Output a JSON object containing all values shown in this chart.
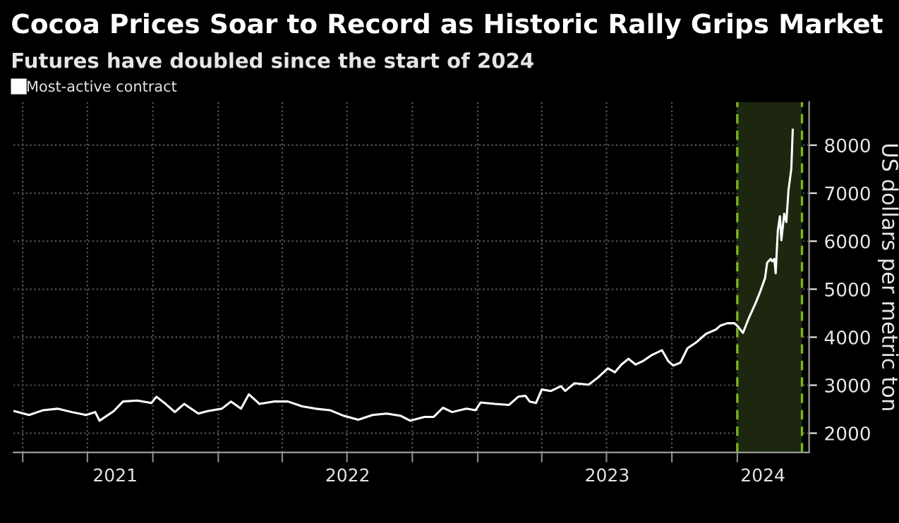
{
  "chart_data": {
    "type": "line",
    "title": "Cocoa Prices Soar to Record as Historic Rally Grips Market",
    "subtitle": "Futures have doubled since the start of 2024",
    "ylabel": "US dollars per metric ton",
    "series": [
      {
        "name": "Most-active contract",
        "color": "#ffffff",
        "x": [
          "2021-03-20",
          "2021-04-10",
          "2021-04-30",
          "2021-05-20",
          "2021-06-09",
          "2021-06-29",
          "2021-07-12",
          "2021-07-18",
          "2021-08-07",
          "2021-08-20",
          "2021-09-09",
          "2021-09-29",
          "2021-10-06",
          "2021-10-19",
          "2021-11-01",
          "2021-11-14",
          "2021-12-04",
          "2021-12-17",
          "2022-01-06",
          "2022-01-19",
          "2022-02-02",
          "2022-02-13",
          "2022-02-28",
          "2022-03-20",
          "2022-04-09",
          "2022-04-29",
          "2022-05-18",
          "2022-06-07",
          "2022-06-27",
          "2022-07-17",
          "2022-08-06",
          "2022-08-26",
          "2022-09-15",
          "2022-09-28",
          "2022-10-18",
          "2022-10-31",
          "2022-11-13",
          "2022-11-26",
          "2022-12-16",
          "2022-12-29",
          "2023-01-05",
          "2023-01-25",
          "2023-02-14",
          "2023-02-27",
          "2023-03-09",
          "2023-03-15",
          "2023-03-24",
          "2023-04-01",
          "2023-04-14",
          "2023-04-28",
          "2023-05-04",
          "2023-05-17",
          "2023-06-06",
          "2023-06-19",
          "2023-07-03",
          "2023-07-13",
          "2023-07-22",
          "2023-08-01",
          "2023-08-11",
          "2023-08-21",
          "2023-09-03",
          "2023-09-17",
          "2023-09-26",
          "2023-10-03",
          "2023-10-13",
          "2023-10-23",
          "2023-11-05",
          "2023-11-18",
          "2023-12-02",
          "2023-12-08",
          "2023-12-18",
          "2023-12-28",
          "2024-01-02",
          "2024-01-09",
          "2024-01-17",
          "2024-01-27",
          "2024-02-02",
          "2024-02-09",
          "2024-02-12",
          "2024-02-17",
          "2024-02-19",
          "2024-02-22",
          "2024-02-24",
          "2024-02-27",
          "2024-03-01",
          "2024-03-03",
          "2024-03-07",
          "2024-03-10",
          "2024-03-13",
          "2024-03-17",
          "2024-03-19"
        ],
        "values": [
          2460,
          2380,
          2480,
          2510,
          2440,
          2380,
          2440,
          2260,
          2460,
          2660,
          2680,
          2630,
          2760,
          2610,
          2440,
          2610,
          2410,
          2460,
          2510,
          2660,
          2510,
          2810,
          2610,
          2660,
          2660,
          2560,
          2510,
          2480,
          2360,
          2280,
          2380,
          2410,
          2360,
          2260,
          2340,
          2340,
          2530,
          2440,
          2510,
          2480,
          2640,
          2610,
          2590,
          2760,
          2780,
          2660,
          2630,
          2910,
          2880,
          2980,
          2880,
          3040,
          3010,
          3160,
          3350,
          3270,
          3430,
          3550,
          3430,
          3500,
          3630,
          3730,
          3500,
          3410,
          3470,
          3770,
          3900,
          4070,
          4160,
          4240,
          4290,
          4290,
          4220,
          4090,
          4390,
          4720,
          4940,
          5230,
          5550,
          5630,
          5580,
          5630,
          5330,
          6220,
          6520,
          6020,
          6570,
          6400,
          7060,
          7510,
          8320
        ]
      }
    ],
    "xlim": [
      "2021-03-19",
      "2024-04-11"
    ],
    "xticks": [
      {
        "value": "2021-04-01",
        "label": null
      },
      {
        "value": "2021-07-01",
        "label": null
      },
      {
        "value": "2021-10-01",
        "label": null
      },
      {
        "value": "2022-01-01",
        "label": null
      },
      {
        "value": "2022-04-01",
        "label": null
      },
      {
        "value": "2022-07-01",
        "label": null
      },
      {
        "value": "2022-10-01",
        "label": null
      },
      {
        "value": "2023-01-01",
        "label": null
      },
      {
        "value": "2023-04-01",
        "label": null
      },
      {
        "value": "2023-07-01",
        "label": null
      },
      {
        "value": "2023-10-01",
        "label": null
      },
      {
        "value": "2024-01-01",
        "label": null
      },
      {
        "value": "2021-08-09",
        "label": "2021"
      },
      {
        "value": "2022-07-02",
        "label": "2022"
      },
      {
        "value": "2023-07-02",
        "label": "2023"
      },
      {
        "value": "2024-02-06",
        "label": "2024"
      }
    ],
    "ylim": [
      1600,
      8900
    ],
    "yticks": [
      2000,
      3000,
      4000,
      5000,
      6000,
      7000,
      8000
    ],
    "bands": [
      {
        "axis": "x",
        "from": "2024-01-01",
        "to": "2024-04-01",
        "color": "#1d2710"
      }
    ],
    "ref_lines": [
      {
        "axis": "x",
        "value": "2024-01-01",
        "color": "#7ab51d",
        "line_style": "dashed"
      },
      {
        "axis": "x",
        "value": "2024-04-01",
        "color": "#7ab51d",
        "line_style": "dashed"
      }
    ],
    "grid": true,
    "legend": "top left"
  }
}
